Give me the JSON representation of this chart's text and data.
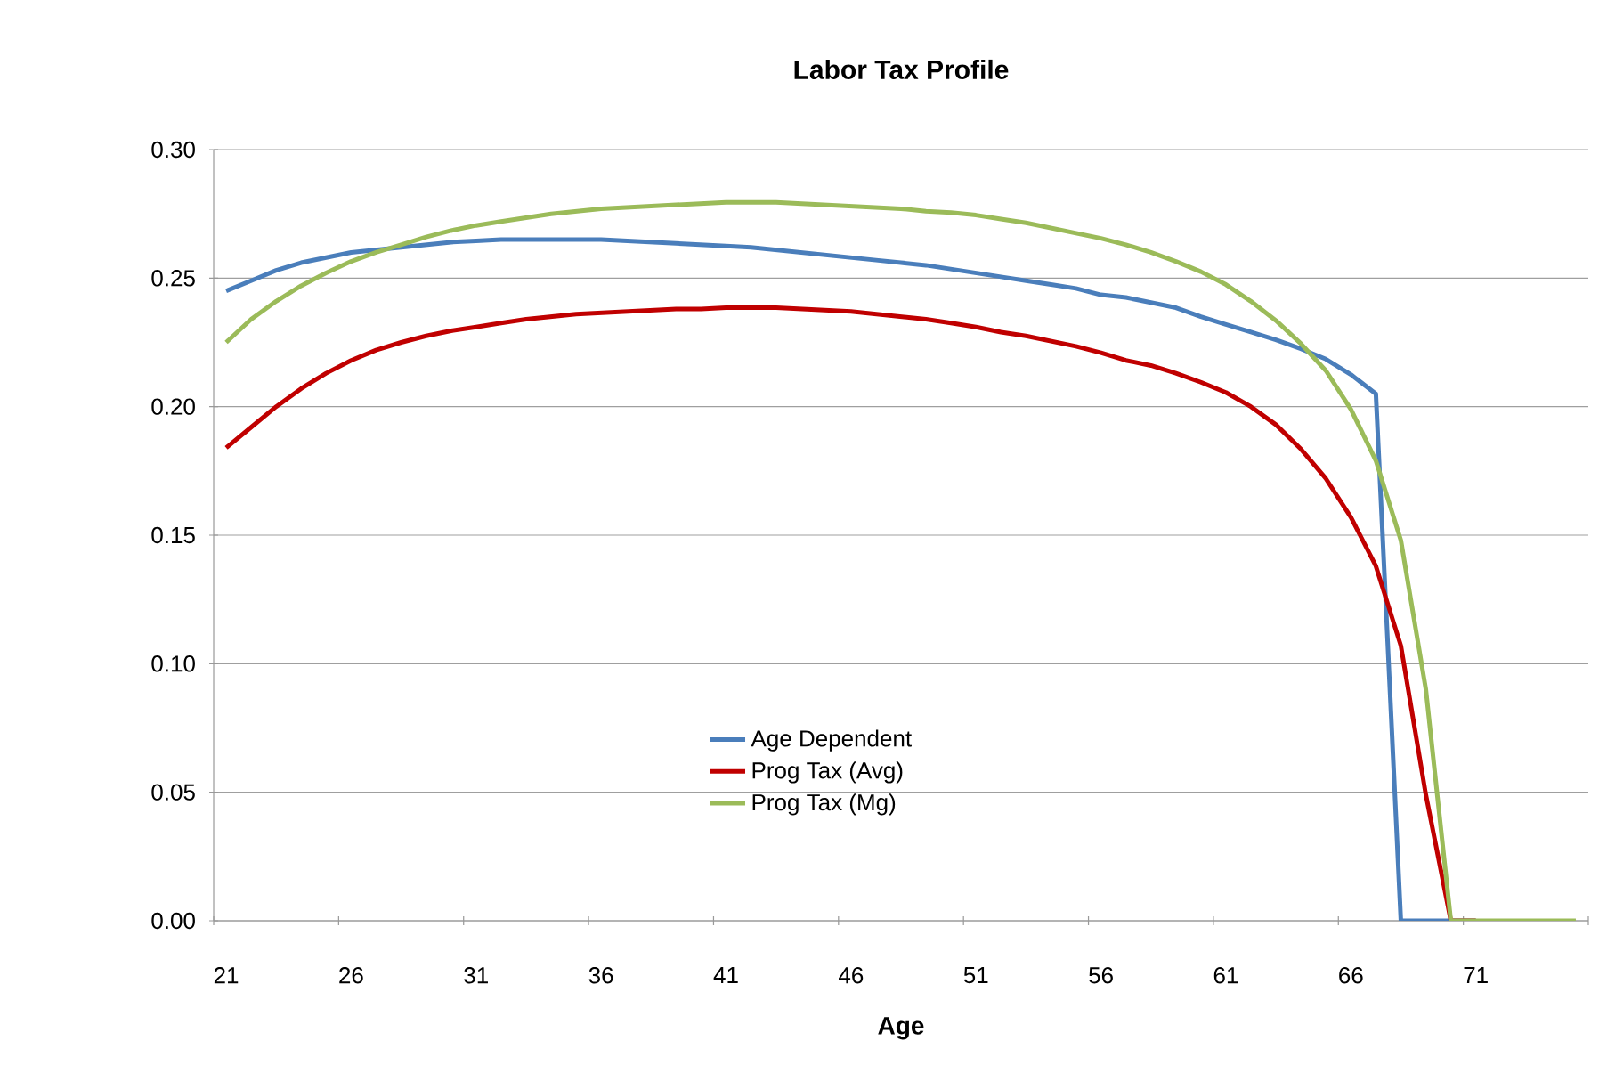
{
  "chart_data": {
    "type": "line",
    "title": "Labor Tax Profile",
    "xlabel": "Age",
    "categories": [
      "21",
      null,
      null,
      null,
      null,
      "26",
      null,
      null,
      null,
      null,
      "31",
      null,
      null,
      null,
      null,
      "36",
      null,
      null,
      null,
      null,
      "41",
      null,
      null,
      null,
      null,
      "46",
      null,
      null,
      null,
      null,
      "51",
      null,
      null,
      null,
      null,
      "56",
      null,
      null,
      null,
      null,
      "61",
      null,
      null,
      null,
      null,
      "66",
      null,
      null,
      null,
      null,
      "71",
      null,
      null,
      null,
      null
    ],
    "series": [
      {
        "name": "Age Dependent",
        "color": "#4a7ebb",
        "values": [
          0.245,
          0.249,
          0.253,
          0.256,
          0.258,
          0.26,
          0.261,
          0.262,
          0.263,
          0.264,
          0.2645,
          0.265,
          0.265,
          0.265,
          0.265,
          0.265,
          0.2645,
          0.264,
          0.2635,
          0.263,
          0.2625,
          0.262,
          0.261,
          0.26,
          0.259,
          0.258,
          0.257,
          0.256,
          0.255,
          0.2535,
          0.252,
          0.2505,
          0.249,
          0.2475,
          0.246,
          0.2435,
          0.2425,
          0.2405,
          0.2385,
          0.235,
          0.232,
          0.229,
          0.226,
          0.2225,
          0.2185,
          0.2125,
          0.205,
          0,
          0,
          0,
          0,
          null,
          null,
          null,
          null
        ]
      },
      {
        "name": "Prog Tax (Avg)",
        "color": "#c00000",
        "values": [
          0.184,
          0.192,
          0.2,
          0.207,
          0.213,
          0.218,
          0.222,
          0.225,
          0.2275,
          0.2295,
          0.231,
          0.2325,
          0.234,
          0.235,
          0.236,
          0.2365,
          0.237,
          0.2375,
          0.238,
          0.238,
          0.2385,
          0.2385,
          0.2385,
          0.238,
          0.2375,
          0.237,
          0.236,
          0.235,
          0.234,
          0.2325,
          0.231,
          0.229,
          0.2275,
          0.2255,
          0.2235,
          0.221,
          0.218,
          0.216,
          0.213,
          0.2095,
          0.2055,
          0.2,
          0.193,
          0.1835,
          0.172,
          0.157,
          0.138,
          0.107,
          0.049,
          0,
          0,
          null,
          null,
          null,
          null
        ]
      },
      {
        "name": "Prog Tax (Mg)",
        "color": "#9bbb59",
        "values": [
          0.225,
          0.234,
          0.241,
          0.247,
          0.252,
          0.2565,
          0.26,
          0.263,
          0.266,
          0.2685,
          0.2705,
          0.272,
          0.2735,
          0.275,
          0.276,
          0.277,
          0.2775,
          0.278,
          0.2785,
          0.279,
          0.2795,
          0.2795,
          0.2795,
          0.279,
          0.2785,
          0.278,
          0.2775,
          0.277,
          0.276,
          0.2755,
          0.2745,
          0.273,
          0.2715,
          0.2695,
          0.2675,
          0.2655,
          0.263,
          0.26,
          0.2565,
          0.2525,
          0.2475,
          0.241,
          0.2335,
          0.2245,
          0.214,
          0.199,
          0.179,
          0.148,
          0.09,
          0,
          0,
          0,
          0,
          0,
          0
        ]
      }
    ],
    "ylim": [
      0,
      0.3
    ],
    "yticks": [
      {
        "value": 0,
        "label": "0.00"
      },
      {
        "value": 0.05,
        "label": "0.05"
      },
      {
        "value": 0.1,
        "label": "0.10"
      },
      {
        "value": 0.15,
        "label": "0.15"
      },
      {
        "value": 0.2,
        "label": "0.20"
      },
      {
        "value": 0.25,
        "label": "0.25"
      },
      {
        "value": 0.3,
        "label": "0.30"
      }
    ],
    "grid": "y",
    "legend": "bottom",
    "marker": "none",
    "line_style": "solid"
  }
}
